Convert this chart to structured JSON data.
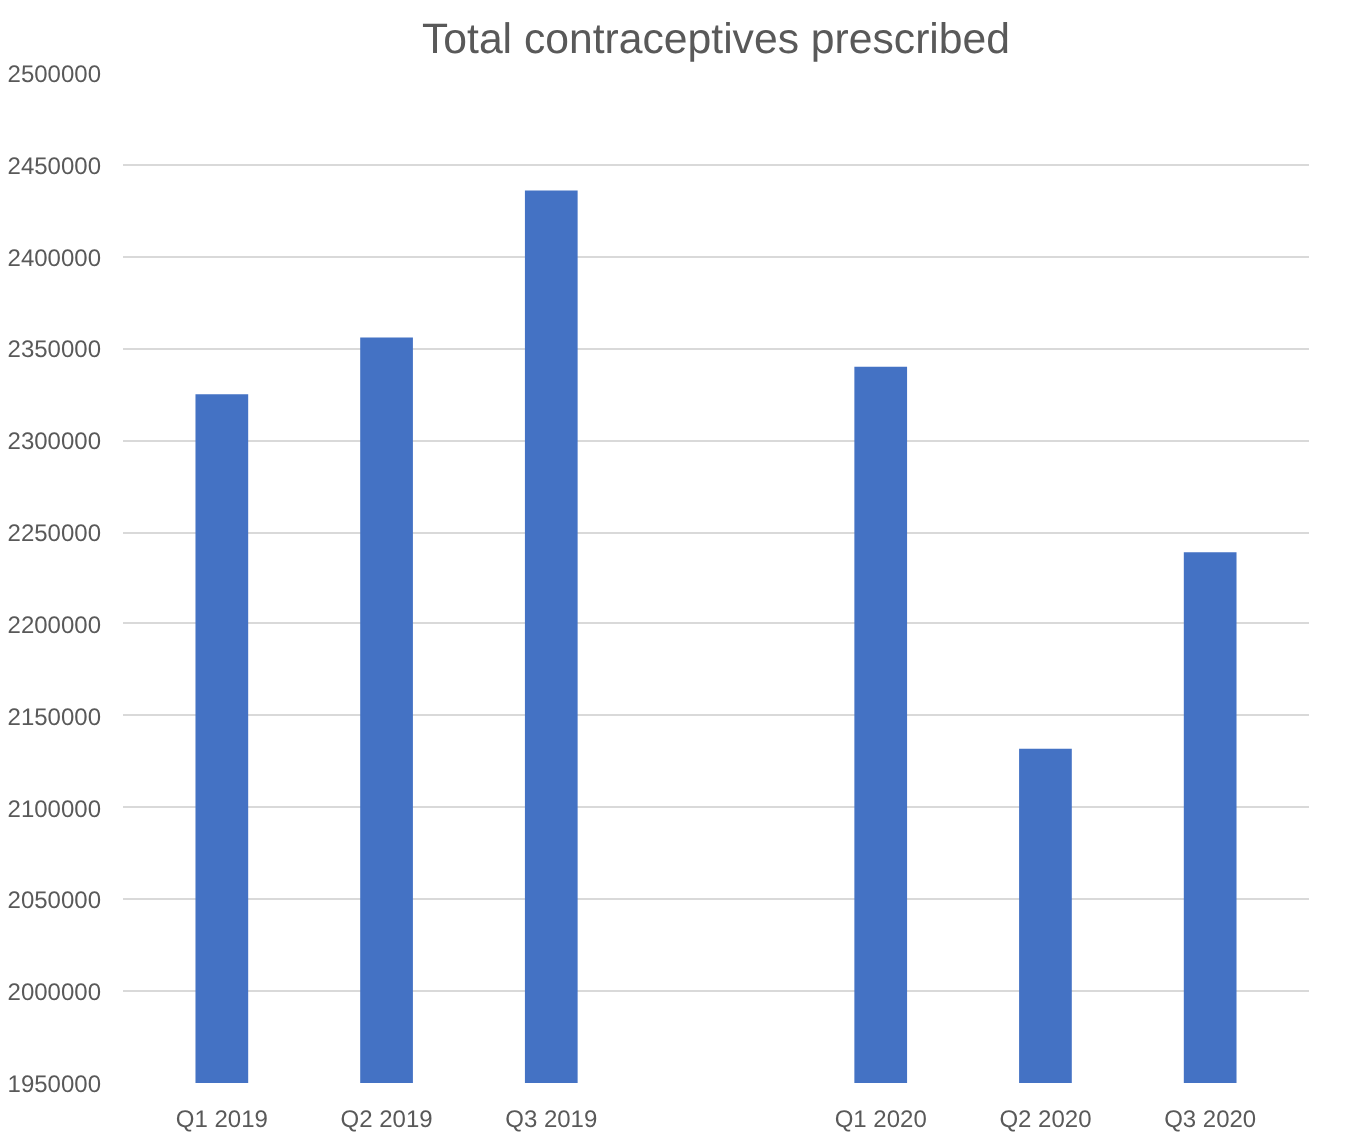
{
  "chart_data": {
    "type": "bar",
    "title": "Total contraceptives prescribed",
    "categories": [
      "Q1 2019",
      "Q2 2019",
      "Q3 2019",
      null,
      "Q1 2020",
      "Q2 2020",
      "Q3 2020"
    ],
    "values": [
      2325000,
      2356000,
      2436000,
      null,
      2340000,
      2132000,
      2239000
    ],
    "color": "#4472c4",
    "ylim": [
      1950000,
      2500000
    ],
    "yticks": [
      1950000,
      2000000,
      2050000,
      2100000,
      2150000,
      2200000,
      2250000,
      2300000,
      2350000,
      2400000,
      2450000,
      2500000
    ],
    "grid": "y"
  }
}
